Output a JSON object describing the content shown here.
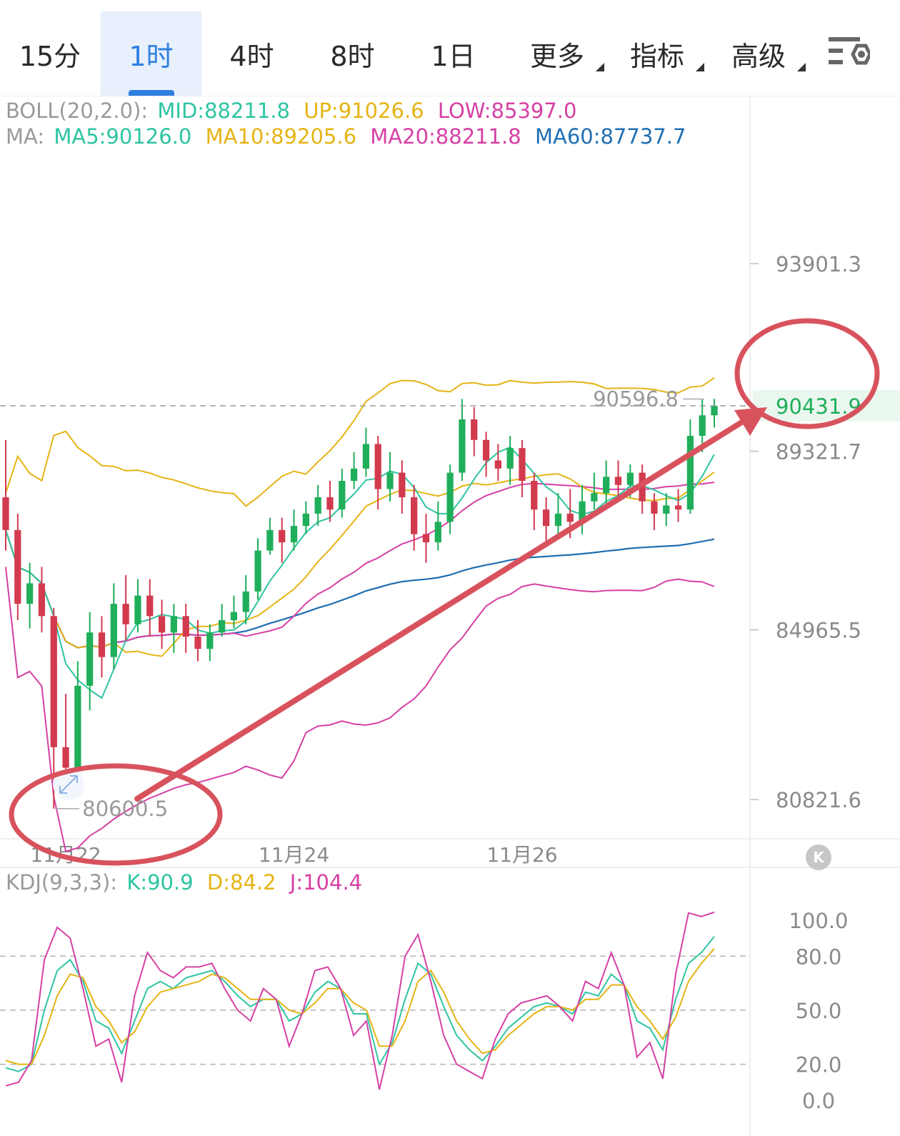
{
  "tabs": [
    {
      "label": "15分",
      "active": false,
      "dropdown": false
    },
    {
      "label": "1时",
      "active": true,
      "dropdown": false
    },
    {
      "label": "4时",
      "active": false,
      "dropdown": false
    },
    {
      "label": "8时",
      "active": false,
      "dropdown": false
    },
    {
      "label": "1日",
      "active": false,
      "dropdown": false
    },
    {
      "label": "更多",
      "active": false,
      "dropdown": true
    },
    {
      "label": "指标",
      "active": false,
      "dropdown": true
    },
    {
      "label": "高级",
      "active": false,
      "dropdown": true
    }
  ],
  "settings_icon": "chart-settings-icon",
  "boll_legend": {
    "prefix": "BOLL(20,2.0):",
    "mid": "MID:88211.8",
    "up": "UP:91026.6",
    "low": "LOW:85397.0"
  },
  "ma_legend": {
    "prefix": "MA:",
    "ma5": "MA5:90126.0",
    "ma10": "MA10:89205.6",
    "ma20": "MA20:88211.8",
    "ma60": "MA60:87737.7"
  },
  "kdj_legend": {
    "prefix": "KDJ(9,3,3):",
    "k": "K:90.9",
    "d": "D:84.2",
    "j": "J:104.4"
  },
  "colors": {
    "up_candle": "#1fae5a",
    "down_candle": "#d23a4e",
    "ma5": "#2ec4a2",
    "ma10": "#e5b415",
    "ma20": "#d640a4",
    "ma60": "#1f6fb2",
    "boll_band": "#c03ccf",
    "k": "#2ec4a2",
    "d": "#e5b415",
    "j": "#d640a4",
    "annotation": "#d8525d",
    "active_tab": "#2f7fe0"
  },
  "chart_data": [
    {
      "type": "candlestick",
      "interval": "1时",
      "y_ticks": [
        93901.3,
        89321.7,
        84965.5,
        80821.6
      ],
      "ylim": [
        79900,
        96500
      ],
      "x_ticks": [
        "11月22",
        "11月24",
        "11月26"
      ],
      "highest_label": "90596.8",
      "lowest_label": "80600.5",
      "last_price": "90431.9",
      "annotation": "arrow from the 80600.5 low to the 90431.9 current price",
      "bars": [
        [
          88200,
          87400,
          89600,
          86900
        ],
        [
          87400,
          85600,
          87800,
          85200
        ],
        [
          85600,
          86100,
          86600,
          85000
        ],
        [
          86100,
          85300,
          86500,
          84900
        ],
        [
          85300,
          82100,
          85500,
          80600
        ],
        [
          82100,
          81600,
          83400,
          81200
        ],
        [
          81600,
          83600,
          84200,
          81300
        ],
        [
          83600,
          84900,
          85400,
          83000
        ],
        [
          84900,
          84300,
          85300,
          83800
        ],
        [
          84300,
          85600,
          86100,
          84000
        ],
        [
          85600,
          85100,
          86300,
          84700
        ],
        [
          85100,
          85800,
          86200,
          84900
        ],
        [
          85800,
          85300,
          86200,
          84800
        ],
        [
          85300,
          84900,
          85700,
          84500
        ],
        [
          84900,
          85300,
          85600,
          84400
        ],
        [
          85300,
          84800,
          85600,
          84400
        ],
        [
          84800,
          84500,
          85200,
          84200
        ],
        [
          84500,
          84900,
          85100,
          84200
        ],
        [
          84900,
          85200,
          85600,
          84800
        ],
        [
          85200,
          85400,
          85800,
          85000
        ],
        [
          85400,
          85900,
          86300,
          85100
        ],
        [
          85900,
          86900,
          87200,
          85700
        ],
        [
          86900,
          87400,
          87700,
          86800
        ],
        [
          87400,
          87100,
          87700,
          86600
        ],
        [
          87100,
          87500,
          87900,
          86900
        ],
        [
          87500,
          87800,
          88100,
          87300
        ],
        [
          87800,
          88200,
          88500,
          87500
        ],
        [
          88200,
          87900,
          88600,
          87600
        ],
        [
          87900,
          88600,
          88900,
          87700
        ],
        [
          88600,
          88900,
          89300,
          88400
        ],
        [
          88900,
          89500,
          89900,
          88700
        ],
        [
          89500,
          88400,
          89700,
          87900
        ],
        [
          88400,
          88800,
          89300,
          88100
        ],
        [
          88800,
          88200,
          89100,
          87800
        ],
        [
          88200,
          87300,
          88500,
          86900
        ],
        [
          87300,
          87100,
          87800,
          86600
        ],
        [
          87100,
          87600,
          88100,
          86900
        ],
        [
          87600,
          88800,
          89000,
          87300
        ],
        [
          88800,
          90100,
          90600,
          88600
        ],
        [
          90100,
          89600,
          90400,
          89200
        ],
        [
          89600,
          89100,
          89800,
          88700
        ],
        [
          89100,
          88900,
          89500,
          88600
        ],
        [
          88900,
          89400,
          89700,
          88500
        ],
        [
          89400,
          88600,
          89600,
          88200
        ],
        [
          88600,
          87900,
          88800,
          87400
        ],
        [
          87900,
          87500,
          88200,
          87000
        ],
        [
          87500,
          87800,
          88300,
          87200
        ],
        [
          87800,
          87600,
          88400,
          87200
        ],
        [
          87600,
          88100,
          88500,
          87300
        ],
        [
          88100,
          88300,
          88800,
          87900
        ],
        [
          88300,
          88700,
          89100,
          88000
        ],
        [
          88700,
          88500,
          89100,
          88200
        ],
        [
          88500,
          88800,
          89000,
          88200
        ],
        [
          88800,
          88100,
          89000,
          87800
        ],
        [
          88100,
          87800,
          88300,
          87400
        ],
        [
          87800,
          88000,
          88300,
          87500
        ],
        [
          88000,
          87900,
          88400,
          87600
        ],
        [
          87900,
          89700,
          90100,
          87800
        ],
        [
          89700,
          90200,
          90600,
          89300
        ],
        [
          90200,
          90431.9,
          90600,
          89900
        ]
      ]
    },
    {
      "type": "line",
      "name": "KDJ(9,3,3)",
      "y_ticks": [
        100.0,
        80.0,
        50.0,
        20.0,
        0.0
      ],
      "ylim": [
        0,
        115
      ],
      "series": [
        {
          "name": "K",
          "values": [
            18,
            16,
            20,
            50,
            72,
            78,
            66,
            44,
            40,
            26,
            44,
            62,
            66,
            62,
            68,
            70,
            72,
            66,
            58,
            52,
            56,
            56,
            44,
            48,
            60,
            66,
            62,
            48,
            48,
            20,
            32,
            56,
            76,
            70,
            52,
            36,
            28,
            22,
            30,
            40,
            46,
            52,
            54,
            52,
            48,
            60,
            58,
            70,
            64,
            44,
            40,
            28,
            56,
            76,
            82,
            90.9
          ]
        },
        {
          "name": "D",
          "values": [
            22,
            20,
            20,
            36,
            58,
            70,
            68,
            52,
            44,
            32,
            38,
            52,
            60,
            62,
            64,
            66,
            70,
            68,
            62,
            56,
            56,
            56,
            50,
            48,
            54,
            62,
            62,
            54,
            50,
            30,
            30,
            44,
            66,
            72,
            60,
            44,
            34,
            26,
            28,
            36,
            42,
            48,
            52,
            52,
            50,
            56,
            56,
            64,
            64,
            52,
            44,
            34,
            46,
            66,
            76,
            84.2
          ]
        },
        {
          "name": "J",
          "values": [
            8,
            10,
            22,
            78,
            96,
            90,
            62,
            30,
            34,
            10,
            58,
            82,
            72,
            68,
            74,
            74,
            76,
            62,
            50,
            44,
            62,
            56,
            30,
            48,
            72,
            74,
            62,
            36,
            44,
            6,
            36,
            80,
            92,
            66,
            36,
            20,
            16,
            12,
            34,
            48,
            54,
            56,
            58,
            52,
            44,
            66,
            62,
            82,
            64,
            24,
            32,
            12,
            70,
            104,
            102,
            104.4
          ]
        }
      ],
      "reference_lines": [
        80,
        50,
        20
      ]
    }
  ]
}
